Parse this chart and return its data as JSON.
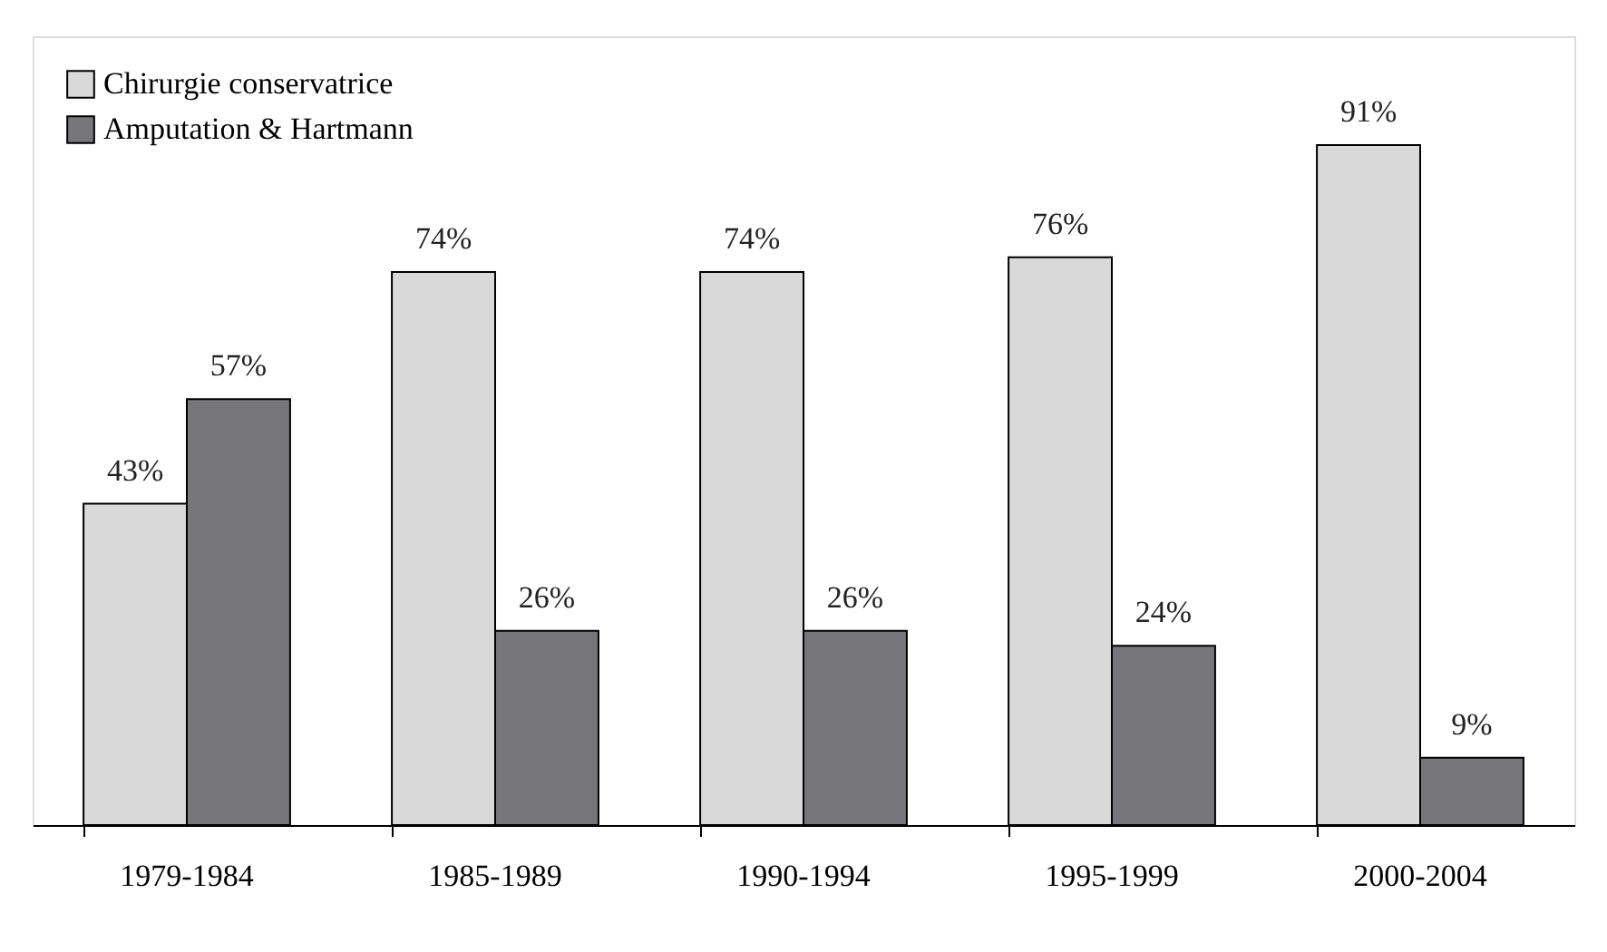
{
  "chart_data": {
    "type": "bar",
    "categories": [
      "1979-1984",
      "1985-1989",
      "1990-1994",
      "1995-1999",
      "2000-2004"
    ],
    "series": [
      {
        "name": "Chirurgie conservatrice",
        "color": "#d9d9d9",
        "values": [
          43,
          74,
          74,
          76,
          91
        ],
        "value_labels": [
          "43%",
          "74%",
          "74%",
          "76%",
          "91%"
        ]
      },
      {
        "name": "Amputation & Hartmann",
        "color": "#77767b",
        "values": [
          57,
          26,
          26,
          24,
          9
        ],
        "value_labels": [
          "57%",
          "26%",
          "26%",
          "24%",
          "9%"
        ]
      }
    ],
    "tick_labels": "x",
    "legend": "top left",
    "grid": false
  }
}
